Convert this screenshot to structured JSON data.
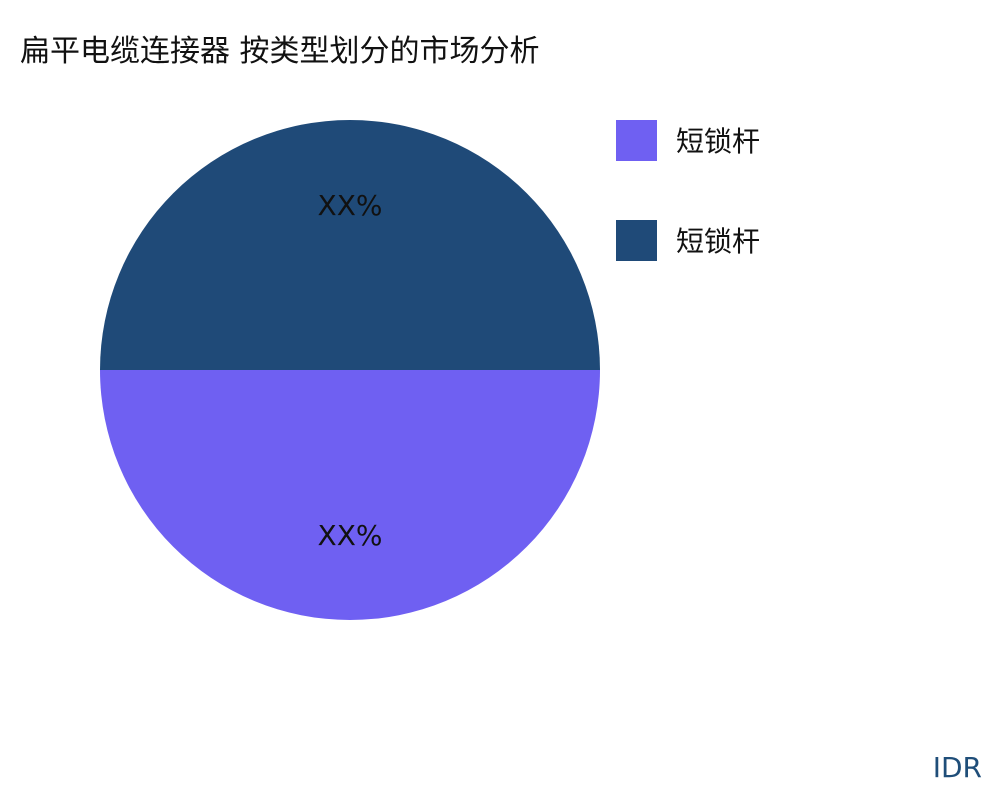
{
  "chart_data": {
    "type": "pie",
    "title": "扁平电缆连接器 按类型划分的市场分析",
    "slices": [
      {
        "name": "短锁杆",
        "value": 50,
        "label": "XX%",
        "color": "#6f60f2"
      },
      {
        "name": "短锁杆",
        "value": 50,
        "label": "XX%",
        "color": "#1f4a78"
      }
    ],
    "legend_position": "right"
  },
  "brand": "IDR"
}
